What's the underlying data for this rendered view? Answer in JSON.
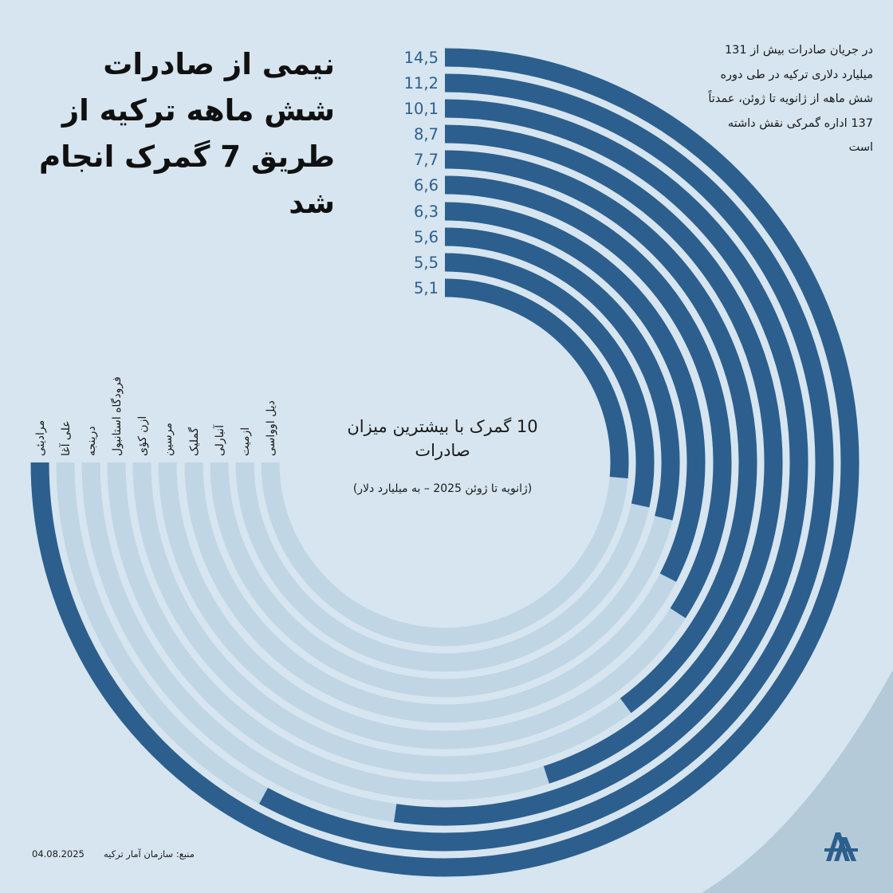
{
  "title": "نیمی از صادرات شش ماهه ترکیه از طریق 7 گمرک انجام شد",
  "description": "در جریان صادرات بیش از 131 میلیارد دلاری ترکیه در طی دوره شش ماهه از ژانویه تا ژوئن، عمدتاً 137 اداره گمرکی نقش داشته است",
  "colors": {
    "background": "#d6e5ef",
    "bar": "#2c5f8e",
    "track": "#c0d6e5",
    "value_text": "#2c5f8e"
  },
  "chart_data": {
    "type": "bar",
    "title": "10 گمرک با بیشترین میزان صادرات",
    "subtitle": "(ژانویه تا ژوئن 2025 – به میلیارد دلار)",
    "categories": [
      "مرادیئی",
      "علی آغا",
      "درینجه",
      "فرودگاه استانبول",
      "ازن کؤی",
      "مرسین",
      "گملیک",
      "آنبارلی",
      "ازمیت",
      "دیل اوواسی"
    ],
    "values": [
      14.5,
      11.2,
      10.1,
      8.7,
      7.7,
      6.6,
      6.3,
      5.6,
      5.5,
      5.1
    ],
    "value_labels": [
      "14,5",
      "11,2",
      "10,1",
      "8,7",
      "7,7",
      "6,6",
      "6,3",
      "5,6",
      "5,5",
      "5,1"
    ],
    "max_value": 14.5,
    "layout": "radial"
  },
  "footer": {
    "source": "منبع: سازمان آمار ترکیه",
    "date": "04.08.2025"
  },
  "logo_icon": "aa-logo-icon"
}
